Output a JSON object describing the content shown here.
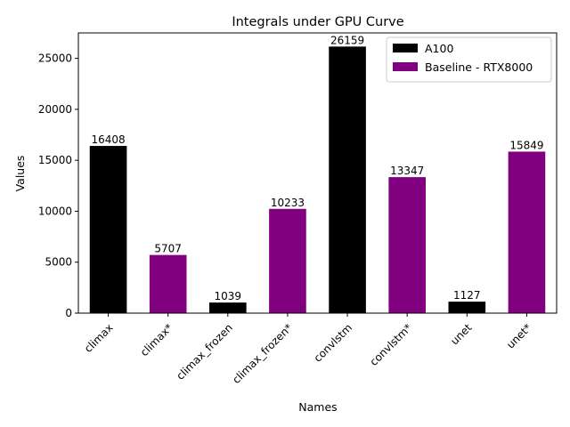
{
  "chart_data": {
    "type": "bar",
    "title": "Integrals under GPU Curve",
    "xlabel": "Names",
    "ylabel": "Values",
    "categories": [
      "climax",
      "climax*",
      "climax_frozen",
      "climax_frozen*",
      "convlstm",
      "convlstm*",
      "unet",
      "unet*"
    ],
    "values": [
      16408,
      5707,
      1039,
      10233,
      26159,
      13347,
      1127,
      15849
    ],
    "bar_series": [
      0,
      1,
      0,
      1,
      0,
      1,
      0,
      1
    ],
    "series": [
      {
        "name": "A100",
        "color": "#000000"
      },
      {
        "name": "Baseline - RTX8000",
        "color": "#800080"
      }
    ],
    "ylim": [
      0,
      27500
    ],
    "yticks": [
      0,
      5000,
      10000,
      15000,
      20000,
      25000
    ],
    "grid": false,
    "legend_position": "top-right"
  }
}
